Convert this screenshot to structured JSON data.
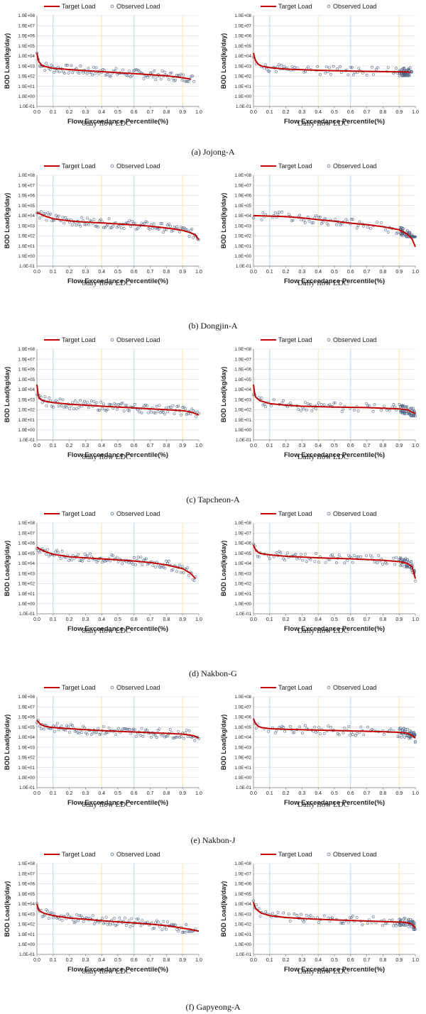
{
  "colors": {
    "target": "#c00000",
    "observed": "#4a5f80",
    "grid_blue": "#b7d3e6",
    "grid_yellow": "#f1e3a3",
    "grid_line": "#d9d9d9",
    "axis": "#7f7f7f"
  },
  "common": {
    "legend_target": "Target Load",
    "legend_observed": "Observed Load",
    "ylabel": "BOD Load(kg/day)",
    "xlabel": "Flow Exceedance Percentile(%)",
    "y_ticks": [
      "1.0E-01",
      "1.0E+00",
      "1.0E+01",
      "1.0E+02",
      "1.0E+03",
      "1.0E+04",
      "1.0E+05",
      "1.0E+06",
      "1.0E+07",
      "1.0E+08"
    ],
    "x_ticks": [
      "0.0",
      "0.1",
      "0.2",
      "0.3",
      "0.4",
      "0.5",
      "0.6",
      "0.7",
      "0.8",
      "0.9",
      "1.0"
    ],
    "sub_8day": "8day  flow  LDC",
    "sub_daily": "Daily  flow  LDC"
  },
  "captions": [
    "(a)  Jojong-A",
    "(b)  Dongjin-A",
    "(c)  Tapcheon-A",
    "(d)  Nakbon-G",
    "(e)  Nakbon-J",
    "(f)  Gapyeong-A"
  ],
  "chart_data": [
    {
      "type": "scatter",
      "station": "Jojong-A",
      "panel": "8day flow LDC",
      "y_scale": "log",
      "ylim": [
        0.1,
        100000000
      ],
      "xlim": [
        0,
        1
      ],
      "target_line": {
        "x": [
          0,
          0.01,
          0.03,
          0.05,
          0.1,
          0.2,
          0.3,
          0.4,
          0.5,
          0.6,
          0.7,
          0.8,
          0.9,
          0.95
        ],
        "y": [
          20000,
          3000,
          1200,
          900,
          600,
          450,
          350,
          280,
          220,
          180,
          140,
          110,
          70,
          50
        ]
      },
      "observed_range": {
        "x": [
          0,
          0.97
        ],
        "y": [
          30,
          30000
        ]
      }
    },
    {
      "type": "scatter",
      "station": "Jojong-A",
      "panel": "Daily flow LDC",
      "y_scale": "log",
      "ylim": [
        0.1,
        100000000
      ],
      "xlim": [
        0,
        1
      ],
      "target_line": {
        "x": [
          0,
          0.01,
          0.03,
          0.05,
          0.1,
          0.2,
          0.4,
          0.6,
          0.8,
          0.9,
          0.95,
          0.97
        ],
        "y": [
          20000,
          4000,
          1500,
          1000,
          700,
          500,
          380,
          320,
          280,
          270,
          260,
          240
        ]
      },
      "observed_range": {
        "x": [
          0,
          0.98
        ],
        "y": [
          20,
          10000
        ]
      }
    },
    {
      "type": "scatter",
      "station": "Dongjin-A",
      "panel": "8day flow LDC",
      "y_scale": "log",
      "ylim": [
        0.1,
        100000000
      ],
      "xlim": [
        0,
        1
      ],
      "target_line": {
        "x": [
          0,
          0.02,
          0.05,
          0.1,
          0.2,
          0.3,
          0.4,
          0.5,
          0.6,
          0.7,
          0.8,
          0.9,
          0.95,
          0.98,
          1
        ],
        "y": [
          20000,
          15000,
          9000,
          5000,
          3000,
          2300,
          1900,
          1500,
          1200,
          900,
          600,
          350,
          200,
          120,
          40
        ]
      },
      "observed_range": {
        "x": [
          0,
          1
        ],
        "y": [
          40,
          100000
        ]
      }
    },
    {
      "type": "scatter",
      "station": "Dongjin-A",
      "panel": "Daily flow LDC",
      "y_scale": "log",
      "ylim": [
        0.1,
        100000000
      ],
      "xlim": [
        0,
        1
      ],
      "target_line": {
        "x": [
          0,
          0.05,
          0.1,
          0.2,
          0.3,
          0.4,
          0.5,
          0.6,
          0.7,
          0.8,
          0.9,
          0.95,
          0.98,
          1
        ],
        "y": [
          10000,
          9500,
          9000,
          8000,
          6000,
          4000,
          2800,
          1800,
          1300,
          800,
          400,
          150,
          50,
          8
        ]
      },
      "observed_range": {
        "x": [
          0,
          1
        ],
        "y": [
          80,
          100000
        ]
      }
    },
    {
      "type": "scatter",
      "station": "Tapcheon-A",
      "panel": "8day flow LDC",
      "y_scale": "log",
      "ylim": [
        0.1,
        100000000
      ],
      "xlim": [
        0,
        1
      ],
      "target_line": {
        "x": [
          0,
          0.01,
          0.03,
          0.05,
          0.1,
          0.2,
          0.3,
          0.4,
          0.5,
          0.6,
          0.7,
          0.8,
          0.9,
          0.95,
          1
        ],
        "y": [
          30000,
          1500,
          900,
          700,
          500,
          350,
          280,
          220,
          180,
          150,
          120,
          100,
          80,
          60,
          30
        ]
      },
      "observed_range": {
        "x": [
          0,
          1
        ],
        "y": [
          20,
          3000
        ]
      }
    },
    {
      "type": "scatter",
      "station": "Tapcheon-A",
      "panel": "Daily flow LDC",
      "y_scale": "log",
      "ylim": [
        0.1,
        100000000
      ],
      "xlim": [
        0,
        1
      ],
      "target_line": {
        "x": [
          0,
          0.01,
          0.03,
          0.05,
          0.1,
          0.2,
          0.3,
          0.4,
          0.5,
          0.6,
          0.7,
          0.8,
          0.9,
          0.95,
          1
        ],
        "y": [
          30000,
          2000,
          1000,
          700,
          400,
          280,
          220,
          200,
          180,
          170,
          160,
          140,
          120,
          100,
          40
        ]
      },
      "observed_range": {
        "x": [
          0,
          1
        ],
        "y": [
          20,
          3000
        ]
      }
    },
    {
      "type": "scatter",
      "station": "Nakbon-G",
      "panel": "8day flow LDC",
      "y_scale": "log",
      "ylim": [
        0.1,
        100000000
      ],
      "xlim": [
        0,
        1
      ],
      "target_line": {
        "x": [
          0,
          0.02,
          0.05,
          0.1,
          0.2,
          0.3,
          0.4,
          0.5,
          0.6,
          0.7,
          0.8,
          0.9,
          0.95,
          0.98
        ],
        "y": [
          400000,
          250000,
          150000,
          80000,
          45000,
          35000,
          28000,
          22000,
          17000,
          12000,
          7000,
          3000,
          1000,
          300
        ]
      },
      "observed_range": {
        "x": [
          0,
          0.98
        ],
        "y": [
          60,
          500000
        ]
      }
    },
    {
      "type": "scatter",
      "station": "Nakbon-G",
      "panel": "Daily flow LDC",
      "y_scale": "log",
      "ylim": [
        0.1,
        100000000
      ],
      "xlim": [
        0,
        1
      ],
      "target_line": {
        "x": [
          0,
          0.01,
          0.03,
          0.05,
          0.1,
          0.2,
          0.4,
          0.6,
          0.8,
          0.9,
          0.95,
          0.98,
          1
        ],
        "y": [
          700000,
          250000,
          120000,
          90000,
          70000,
          50000,
          35000,
          28000,
          20000,
          15000,
          10000,
          5000,
          300
        ]
      },
      "observed_range": {
        "x": [
          0,
          1
        ],
        "y": [
          60,
          800000
        ]
      }
    },
    {
      "type": "scatter",
      "station": "Nakbon-J",
      "panel": "8day flow LDC",
      "y_scale": "log",
      "ylim": [
        0.1,
        100000000
      ],
      "xlim": [
        0,
        1
      ],
      "target_line": {
        "x": [
          0,
          0.02,
          0.05,
          0.1,
          0.2,
          0.3,
          0.4,
          0.5,
          0.6,
          0.7,
          0.8,
          0.9,
          0.95,
          0.98,
          1
        ],
        "y": [
          500000,
          200000,
          120000,
          90000,
          70000,
          55000,
          45000,
          38000,
          33000,
          28000,
          24000,
          20000,
          16000,
          12000,
          8000
        ]
      },
      "observed_range": {
        "x": [
          0,
          1
        ],
        "y": [
          2000,
          500000
        ]
      }
    },
    {
      "type": "scatter",
      "station": "Nakbon-J",
      "panel": "Daily flow LDC",
      "y_scale": "log",
      "ylim": [
        0.1,
        100000000
      ],
      "xlim": [
        0,
        1
      ],
      "target_line": {
        "x": [
          0,
          0.01,
          0.03,
          0.05,
          0.1,
          0.2,
          0.4,
          0.6,
          0.8,
          0.9,
          0.95,
          0.98,
          1
        ],
        "y": [
          700000,
          250000,
          120000,
          90000,
          70000,
          60000,
          50000,
          42000,
          35000,
          30000,
          25000,
          15000,
          8000
        ]
      },
      "observed_range": {
        "x": [
          0,
          1
        ],
        "y": [
          2000,
          500000
        ]
      }
    },
    {
      "type": "scatter",
      "station": "Gapyeong-A",
      "panel": "8day flow LDC",
      "y_scale": "log",
      "ylim": [
        0.1,
        100000000
      ],
      "xlim": [
        0,
        1
      ],
      "target_line": {
        "x": [
          0,
          0.01,
          0.03,
          0.05,
          0.1,
          0.2,
          0.3,
          0.4,
          0.5,
          0.6,
          0.7,
          0.8,
          0.9,
          0.95,
          1
        ],
        "y": [
          10000,
          2500,
          1500,
          1100,
          700,
          400,
          300,
          220,
          170,
          130,
          100,
          70,
          40,
          30,
          20
        ]
      },
      "observed_range": {
        "x": [
          0,
          0.98
        ],
        "y": [
          10,
          30000
        ]
      }
    },
    {
      "type": "scatter",
      "station": "Gapyeong-A",
      "panel": "Daily flow LDC",
      "y_scale": "log",
      "ylim": [
        0.1,
        100000000
      ],
      "xlim": [
        0,
        1
      ],
      "target_line": {
        "x": [
          0,
          0.01,
          0.03,
          0.05,
          0.1,
          0.2,
          0.4,
          0.6,
          0.8,
          0.9,
          0.95,
          0.98,
          1
        ],
        "y": [
          15000,
          4000,
          2000,
          1200,
          700,
          450,
          300,
          230,
          180,
          160,
          140,
          100,
          40
        ]
      },
      "observed_range": {
        "x": [
          0,
          1
        ],
        "y": [
          10,
          20000
        ]
      }
    }
  ]
}
